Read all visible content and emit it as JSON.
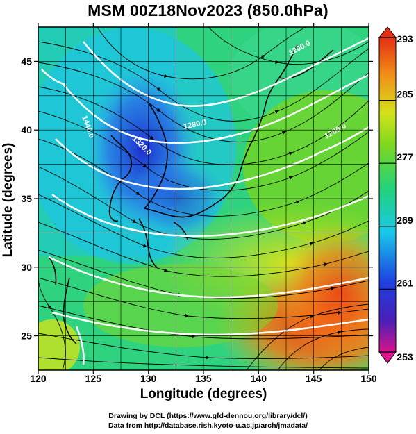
{
  "title": "MSM 00Z18Nov2023 (850.0hPa)",
  "axes": {
    "xlabel": "Longitude (degrees)",
    "ylabel": "Latitude  (degrees)",
    "xticks": [
      "120",
      "125",
      "130",
      "135",
      "140",
      "145",
      "150"
    ],
    "yticks": [
      "25",
      "30",
      "35",
      "40",
      "45"
    ],
    "xlim": [
      120,
      150
    ],
    "ylim": [
      22.5,
      47.5
    ]
  },
  "colorbar": {
    "labels": [
      "293",
      "285",
      "277",
      "269",
      "261",
      "253"
    ],
    "range": [
      253,
      293
    ],
    "colors": [
      "#e01a8c",
      "#2f2fc8",
      "#26c6e6",
      "#2fd36a",
      "#c8e61e",
      "#f08a1e",
      "#e83016"
    ]
  },
  "contour_labels": [
    "1200.0",
    "1280.0",
    "1320.0",
    "1440.0",
    "1200.0"
  ],
  "credits": {
    "line1": "Drawing by DCL (https://www.gfd-dennou.org/library/dcl/)",
    "line2": "Data from http://database.rish.kyoto-u.ac.jp/arch/jmadata/"
  }
}
